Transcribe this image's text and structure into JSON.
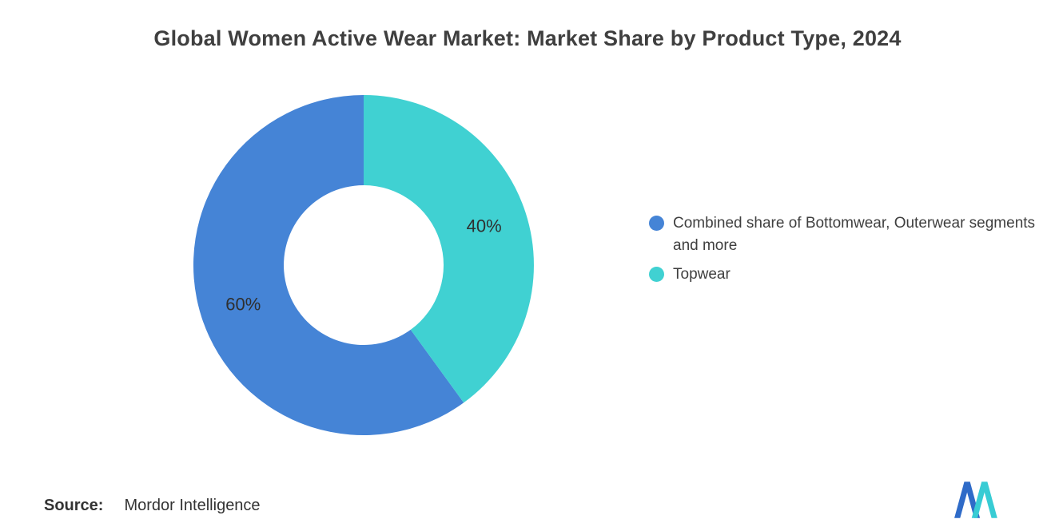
{
  "title": "Global Women Active Wear Market: Market Share by Product Type, 2024",
  "source": {
    "label": "Source:",
    "value": "Mordor Intelligence"
  },
  "colors": {
    "blue": "#4584D6",
    "teal": "#40D1D2",
    "title_text": "#3F3F3F",
    "label_text": "#2F2F2F"
  },
  "logo_colors": {
    "blue": "#2F6BC8",
    "teal": "#38CCD4"
  },
  "chart_data": {
    "type": "pie",
    "subtype": "donut",
    "title": "Global Women Active Wear Market: Market Share by Product Type, 2024",
    "slices": [
      {
        "name": "Combined share of Bottomwear, Outerwear segments and more",
        "value": 60,
        "label": "60%",
        "color": "#4584D6"
      },
      {
        "name": "Topwear",
        "value": 40,
        "label": "40%",
        "color": "#40D1D2"
      }
    ],
    "legend": [
      {
        "label": "Combined share of Bottomwear, Outerwear segments and more",
        "color": "#4584D6"
      },
      {
        "label": "Topwear",
        "color": "#40D1D2"
      }
    ],
    "legend_position": "right",
    "start_angle": "top",
    "direction": "counterclockwise",
    "donut_hole_ratio": 0.47,
    "grid": false
  }
}
